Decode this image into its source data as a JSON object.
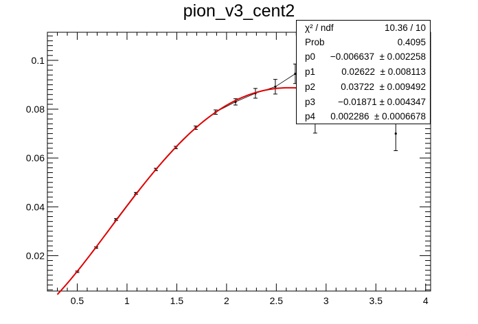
{
  "title": "pion_v3_cent2",
  "stats": {
    "rows": [
      {
        "key": "χ² / ndf",
        "value": "10.36 / 10"
      },
      {
        "key": "Prob",
        "value": "0.4095"
      },
      {
        "key": "p0",
        "value": "−0.006637  ± 0.002258"
      },
      {
        "key": "p1",
        "value": "0.02622  ± 0.008113"
      },
      {
        "key": "p2",
        "value": "0.03722  ± 0.009492"
      },
      {
        "key": "p3",
        "value": "−0.01871 ± 0.004347"
      },
      {
        "key": "p4",
        "value": "0.002286  ± 0.0006678"
      }
    ]
  },
  "chart_data": {
    "type": "scatter",
    "title": "pion_v3_cent2",
    "xlabel": "",
    "ylabel": "",
    "xlim": [
      0.2,
      4.05
    ],
    "ylim": [
      0.0055,
      0.1115
    ],
    "x_ticks": [
      "0.5",
      "1",
      "1.5",
      "2",
      "2.5",
      "3",
      "3.5",
      "4"
    ],
    "y_ticks": [
      "0.02",
      "0.04",
      "0.06",
      "0.08",
      "0.1"
    ],
    "series": [
      {
        "kind": "data-points-with-errors",
        "color": "#000000",
        "points": [
          {
            "x": 0.5,
            "y": 0.0134,
            "err": 0.0003
          },
          {
            "x": 0.69,
            "y": 0.0233,
            "err": 0.0003
          },
          {
            "x": 0.89,
            "y": 0.0348,
            "err": 0.0004
          },
          {
            "x": 1.09,
            "y": 0.0455,
            "err": 0.0004
          },
          {
            "x": 1.29,
            "y": 0.0553,
            "err": 0.0005
          },
          {
            "x": 1.49,
            "y": 0.0643,
            "err": 0.0005
          },
          {
            "x": 1.69,
            "y": 0.0724,
            "err": 0.0007
          },
          {
            "x": 1.89,
            "y": 0.0788,
            "err": 0.0009
          },
          {
            "x": 2.09,
            "y": 0.083,
            "err": 0.0013
          },
          {
            "x": 2.29,
            "y": 0.0865,
            "err": 0.002
          },
          {
            "x": 2.49,
            "y": 0.0892,
            "err": 0.003
          },
          {
            "x": 2.69,
            "y": 0.0945,
            "err": 0.004
          },
          {
            "x": 2.89,
            "y": 0.0752,
            "err": 0.005
          },
          {
            "x": 3.7,
            "y": 0.07,
            "err": 0.007
          }
        ]
      },
      {
        "kind": "fit-polynomial",
        "color": "#e00000",
        "params": [
          -0.006637,
          0.02622,
          0.03722,
          -0.01871,
          0.002286
        ],
        "xrange": [
          0.3,
          2.9
        ]
      }
    ]
  }
}
